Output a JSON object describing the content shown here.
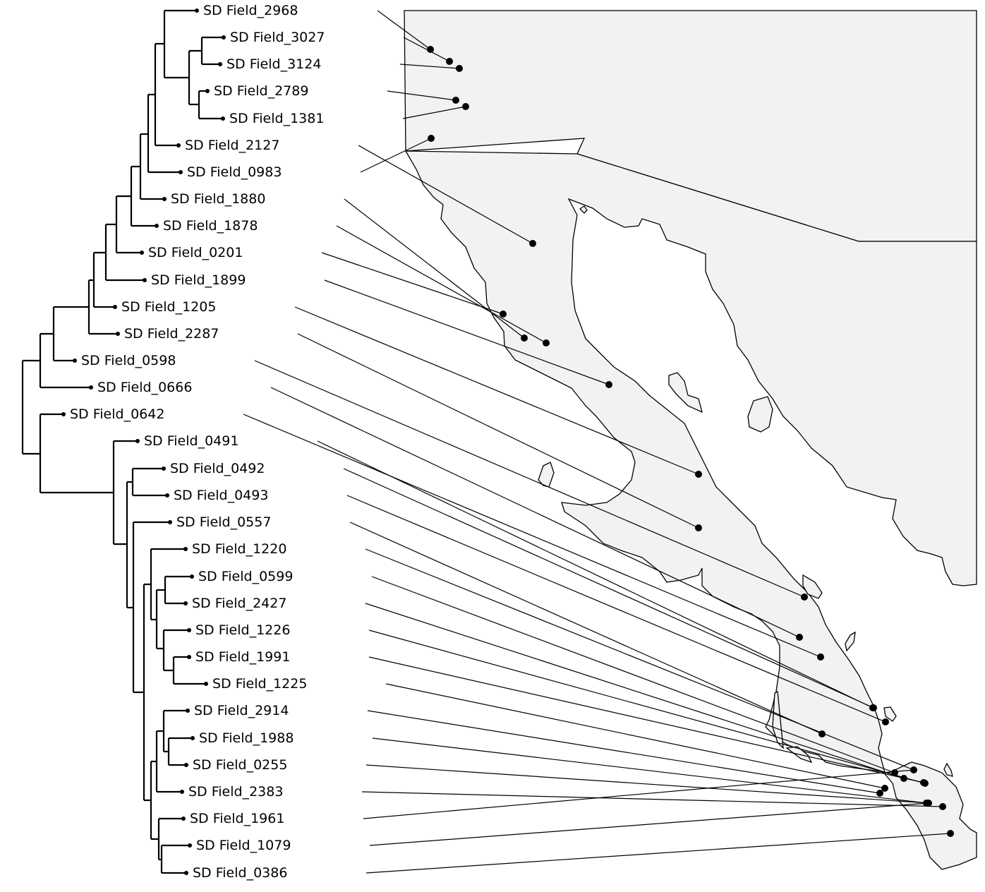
{
  "taxa": [
    "SD Field_2968",
    "SD Field_3027",
    "SD Field_3124",
    "SD Field_2789",
    "SD Field_1381",
    "SD Field_2127",
    "SD Field_0983",
    "SD Field_1880",
    "SD Field_1878",
    "SD Field_0201",
    "SD Field_1899",
    "SD Field_1205",
    "SD Field_2287",
    "SD Field_0598",
    "SD Field_0666",
    "SD Field_0642",
    "SD Field_0491",
    "SD Field_0492",
    "SD Field_0493",
    "SD Field_0557",
    "SD Field_1220",
    "SD Field_0599",
    "SD Field_2427",
    "SD Field_1226",
    "SD Field_1991",
    "SD Field_1225",
    "SD Field_2914",
    "SD Field_1988",
    "SD Field_0255",
    "SD Field_2383",
    "SD Field_1961",
    "SD Field_1079",
    "SD Field_0386"
  ],
  "colors": {
    "land": "#f2f2f2",
    "line": "#000000",
    "background": "#ffffff"
  }
}
